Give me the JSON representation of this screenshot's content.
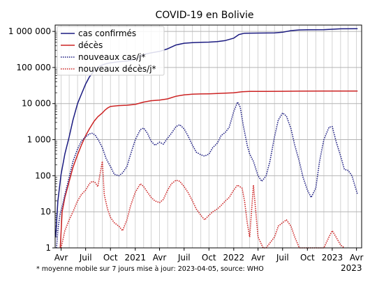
{
  "chart_data": {
    "type": "line",
    "title": "COVID-19 en Bolivie",
    "y_scale": "log",
    "ylim": [
      1,
      1500000
    ],
    "xlim": [
      "2020-03-10",
      "2023-04-20"
    ],
    "y_ticks": [
      {
        "v": 1,
        "label": "1"
      },
      {
        "v": 10,
        "label": "10"
      },
      {
        "v": 100,
        "label": "100"
      },
      {
        "v": 1000,
        "label": "1 000"
      },
      {
        "v": 10000,
        "label": "10 000"
      },
      {
        "v": 100000,
        "label": "100 000"
      },
      {
        "v": 1000000,
        "label": "1 000 000"
      }
    ],
    "x_ticks": [
      {
        "date": "2020-04-01",
        "label": "Avr"
      },
      {
        "date": "2020-07-01",
        "label": "Juil"
      },
      {
        "date": "2020-10-01",
        "label": "Oct"
      },
      {
        "date": "2021-01-01",
        "label": "2021"
      },
      {
        "date": "2021-04-01",
        "label": "Avr"
      },
      {
        "date": "2021-07-01",
        "label": "Juil"
      },
      {
        "date": "2021-10-01",
        "label": "Oct"
      },
      {
        "date": "2022-01-01",
        "label": "2022"
      },
      {
        "date": "2022-04-01",
        "label": "Avr"
      },
      {
        "date": "2022-07-01",
        "label": "Juil"
      },
      {
        "date": "2022-10-01",
        "label": "Oct"
      },
      {
        "date": "2023-01-01",
        "label": "2023"
      },
      {
        "date": "2023-04-01",
        "label": "Avr"
      }
    ],
    "grid": true,
    "legend_position": "top-left",
    "series": [
      {
        "name": "cas confirmés",
        "color": "#1a1a80",
        "style": "solid",
        "points": [
          [
            "2020-03-12",
            2
          ],
          [
            "2020-03-20",
            20
          ],
          [
            "2020-04-01",
            110
          ],
          [
            "2020-04-15",
            400
          ],
          [
            "2020-05-01",
            1200
          ],
          [
            "2020-05-15",
            3500
          ],
          [
            "2020-06-01",
            10000
          ],
          [
            "2020-06-15",
            18000
          ],
          [
            "2020-07-01",
            35000
          ],
          [
            "2020-07-15",
            55000
          ],
          [
            "2020-08-01",
            80000
          ],
          [
            "2020-08-15",
            100000
          ],
          [
            "2020-09-01",
            118000
          ],
          [
            "2020-09-15",
            128000
          ],
          [
            "2020-10-01",
            135000
          ],
          [
            "2020-11-01",
            145000
          ],
          [
            "2020-12-01",
            150000
          ],
          [
            "2021-01-01",
            170000
          ],
          [
            "2021-02-01",
            230000
          ],
          [
            "2021-03-01",
            255000
          ],
          [
            "2021-04-01",
            280000
          ],
          [
            "2021-05-01",
            330000
          ],
          [
            "2021-06-01",
            420000
          ],
          [
            "2021-07-01",
            470000
          ],
          [
            "2021-08-01",
            490000
          ],
          [
            "2021-09-01",
            500000
          ],
          [
            "2021-10-01",
            505000
          ],
          [
            "2021-11-01",
            520000
          ],
          [
            "2021-12-01",
            560000
          ],
          [
            "2022-01-01",
            650000
          ],
          [
            "2022-01-20",
            820000
          ],
          [
            "2022-02-10",
            890000
          ],
          [
            "2022-04-01",
            900000
          ],
          [
            "2022-06-01",
            910000
          ],
          [
            "2022-07-01",
            950000
          ],
          [
            "2022-08-01",
            1050000
          ],
          [
            "2022-09-01",
            1100000
          ],
          [
            "2022-10-01",
            1110000
          ],
          [
            "2022-12-01",
            1120000
          ],
          [
            "2023-01-01",
            1150000
          ],
          [
            "2023-02-01",
            1180000
          ],
          [
            "2023-04-05",
            1190000
          ]
        ]
      },
      {
        "name": "décès",
        "color": "#cc2222",
        "style": "solid",
        "points": [
          [
            "2020-03-29",
            1
          ],
          [
            "2020-04-05",
            10
          ],
          [
            "2020-04-15",
            25
          ],
          [
            "2020-05-01",
            70
          ],
          [
            "2020-05-15",
            170
          ],
          [
            "2020-06-01",
            380
          ],
          [
            "2020-06-15",
            700
          ],
          [
            "2020-07-01",
            1300
          ],
          [
            "2020-07-15",
            2000
          ],
          [
            "2020-08-01",
            3200
          ],
          [
            "2020-08-15",
            4300
          ],
          [
            "2020-09-01",
            5500
          ],
          [
            "2020-09-10",
            6500
          ],
          [
            "2020-09-20",
            7500
          ],
          [
            "2020-10-01",
            8300
          ],
          [
            "2020-11-01",
            8800
          ],
          [
            "2020-12-01",
            9000
          ],
          [
            "2021-01-01",
            9500
          ],
          [
            "2021-02-01",
            11000
          ],
          [
            "2021-03-01",
            12000
          ],
          [
            "2021-04-01",
            12500
          ],
          [
            "2021-05-01",
            13500
          ],
          [
            "2021-06-01",
            16000
          ],
          [
            "2021-07-01",
            17500
          ],
          [
            "2021-08-01",
            18200
          ],
          [
            "2021-09-01",
            18500
          ],
          [
            "2021-10-01",
            18700
          ],
          [
            "2021-11-01",
            19000
          ],
          [
            "2021-12-01",
            19500
          ],
          [
            "2022-01-01",
            20000
          ],
          [
            "2022-02-01",
            21200
          ],
          [
            "2022-03-01",
            21700
          ],
          [
            "2022-05-01",
            21800
          ],
          [
            "2022-07-01",
            21900
          ],
          [
            "2022-09-01",
            22100
          ],
          [
            "2022-12-01",
            22200
          ],
          [
            "2023-04-05",
            22300
          ]
        ]
      },
      {
        "name": "nouveaux cas/j*",
        "color": "#1a1a80",
        "style": "dotted",
        "points": [
          [
            "2020-03-15",
            1
          ],
          [
            "2020-03-20",
            3
          ],
          [
            "2020-03-27",
            8
          ],
          [
            "2020-04-05",
            14
          ],
          [
            "2020-04-15",
            30
          ],
          [
            "2020-05-01",
            90
          ],
          [
            "2020-05-15",
            250
          ],
          [
            "2020-06-01",
            550
          ],
          [
            "2020-06-15",
            900
          ],
          [
            "2020-07-01",
            1200
          ],
          [
            "2020-07-15",
            1450
          ],
          [
            "2020-07-25",
            1500
          ],
          [
            "2020-08-05",
            1350
          ],
          [
            "2020-08-20",
            900
          ],
          [
            "2020-09-01",
            600
          ],
          [
            "2020-09-15",
            300
          ],
          [
            "2020-10-01",
            180
          ],
          [
            "2020-10-15",
            110
          ],
          [
            "2020-11-01",
            100
          ],
          [
            "2020-11-15",
            120
          ],
          [
            "2020-12-01",
            180
          ],
          [
            "2020-12-15",
            400
          ],
          [
            "2021-01-01",
            1000
          ],
          [
            "2021-01-20",
            1900
          ],
          [
            "2021-02-01",
            2100
          ],
          [
            "2021-02-15",
            1500
          ],
          [
            "2021-03-01",
            900
          ],
          [
            "2021-03-15",
            700
          ],
          [
            "2021-04-01",
            850
          ],
          [
            "2021-04-15",
            750
          ],
          [
            "2021-05-01",
            1100
          ],
          [
            "2021-05-15",
            1500
          ],
          [
            "2021-06-01",
            2300
          ],
          [
            "2021-06-15",
            2600
          ],
          [
            "2021-07-01",
            2000
          ],
          [
            "2021-07-15",
            1300
          ],
          [
            "2021-08-01",
            700
          ],
          [
            "2021-08-15",
            450
          ],
          [
            "2021-09-01",
            380
          ],
          [
            "2021-09-15",
            350
          ],
          [
            "2021-10-01",
            400
          ],
          [
            "2021-10-15",
            600
          ],
          [
            "2021-11-01",
            800
          ],
          [
            "2021-11-15",
            1300
          ],
          [
            "2021-12-01",
            1600
          ],
          [
            "2021-12-15",
            2200
          ],
          [
            "2022-01-01",
            6000
          ],
          [
            "2022-01-15",
            11000
          ],
          [
            "2022-01-25",
            8000
          ],
          [
            "2022-02-05",
            2500
          ],
          [
            "2022-02-20",
            700
          ],
          [
            "2022-03-01",
            400
          ],
          [
            "2022-03-15",
            250
          ],
          [
            "2022-04-01",
            100
          ],
          [
            "2022-04-15",
            70
          ],
          [
            "2022-05-01",
            100
          ],
          [
            "2022-05-15",
            250
          ],
          [
            "2022-06-01",
            1200
          ],
          [
            "2022-06-15",
            3500
          ],
          [
            "2022-07-01",
            5500
          ],
          [
            "2022-07-15",
            4500
          ],
          [
            "2022-08-01",
            2000
          ],
          [
            "2022-08-15",
            700
          ],
          [
            "2022-09-01",
            250
          ],
          [
            "2022-09-15",
            90
          ],
          [
            "2022-10-01",
            40
          ],
          [
            "2022-10-15",
            25
          ],
          [
            "2022-11-01",
            45
          ],
          [
            "2022-11-15",
            250
          ],
          [
            "2022-12-01",
            1000
          ],
          [
            "2022-12-20",
            2200
          ],
          [
            "2023-01-01",
            2300
          ],
          [
            "2023-01-15",
            900
          ],
          [
            "2023-02-01",
            350
          ],
          [
            "2023-02-15",
            150
          ],
          [
            "2023-03-01",
            140
          ],
          [
            "2023-03-15",
            100
          ],
          [
            "2023-04-05",
            30
          ]
        ]
      },
      {
        "name": "nouveaux décès/j*",
        "color": "#cc2222",
        "style": "dotted",
        "points": [
          [
            "2020-04-01",
            1
          ],
          [
            "2020-04-15",
            3
          ],
          [
            "2020-05-01",
            6
          ],
          [
            "2020-05-15",
            10
          ],
          [
            "2020-06-01",
            20
          ],
          [
            "2020-06-15",
            30
          ],
          [
            "2020-07-01",
            40
          ],
          [
            "2020-07-15",
            60
          ],
          [
            "2020-07-25",
            70
          ],
          [
            "2020-08-05",
            65
          ],
          [
            "2020-08-15",
            50
          ],
          [
            "2020-09-01",
            250
          ],
          [
            "2020-09-08",
            30
          ],
          [
            "2020-09-20",
            12
          ],
          [
            "2020-10-01",
            7
          ],
          [
            "2020-10-15",
            5
          ],
          [
            "2020-11-01",
            4
          ],
          [
            "2020-11-15",
            3
          ],
          [
            "2020-12-01",
            6
          ],
          [
            "2020-12-15",
            15
          ],
          [
            "2021-01-01",
            35
          ],
          [
            "2021-01-20",
            60
          ],
          [
            "2021-02-01",
            50
          ],
          [
            "2021-02-15",
            35
          ],
          [
            "2021-03-01",
            25
          ],
          [
            "2021-03-15",
            20
          ],
          [
            "2021-04-01",
            18
          ],
          [
            "2021-04-15",
            22
          ],
          [
            "2021-05-01",
            40
          ],
          [
            "2021-05-15",
            60
          ],
          [
            "2021-06-01",
            75
          ],
          [
            "2021-06-15",
            70
          ],
          [
            "2021-07-01",
            50
          ],
          [
            "2021-07-15",
            35
          ],
          [
            "2021-08-01",
            20
          ],
          [
            "2021-08-15",
            12
          ],
          [
            "2021-09-01",
            8
          ],
          [
            "2021-09-15",
            6
          ],
          [
            "2021-10-01",
            8
          ],
          [
            "2021-10-15",
            10
          ],
          [
            "2021-11-01",
            12
          ],
          [
            "2021-11-15",
            15
          ],
          [
            "2021-12-01",
            20
          ],
          [
            "2021-12-15",
            25
          ],
          [
            "2022-01-01",
            40
          ],
          [
            "2022-01-15",
            55
          ],
          [
            "2022-02-01",
            45
          ],
          [
            "2022-02-10",
            20
          ],
          [
            "2022-02-20",
            5
          ],
          [
            "2022-03-01",
            2
          ],
          [
            "2022-03-15",
            55
          ],
          [
            "2022-04-01",
            2
          ],
          [
            "2022-04-20",
            1
          ],
          [
            "2022-05-01",
            1
          ],
          [
            "2022-06-01",
            2
          ],
          [
            "2022-06-15",
            4
          ],
          [
            "2022-07-01",
            5
          ],
          [
            "2022-07-15",
            6
          ],
          [
            "2022-08-01",
            4
          ],
          [
            "2022-08-15",
            2
          ],
          [
            "2022-09-01",
            1
          ],
          [
            "2022-12-01",
            1
          ],
          [
            "2022-12-20",
            2
          ],
          [
            "2023-01-01",
            3
          ],
          [
            "2023-01-15",
            2
          ],
          [
            "2023-02-01",
            1.2
          ],
          [
            "2023-02-15",
            1
          ]
        ]
      }
    ]
  },
  "footnote": "* moyenne mobile sur 7 jours   mise à jour: 2023-04-05, source: WHO",
  "year_label": "2023"
}
